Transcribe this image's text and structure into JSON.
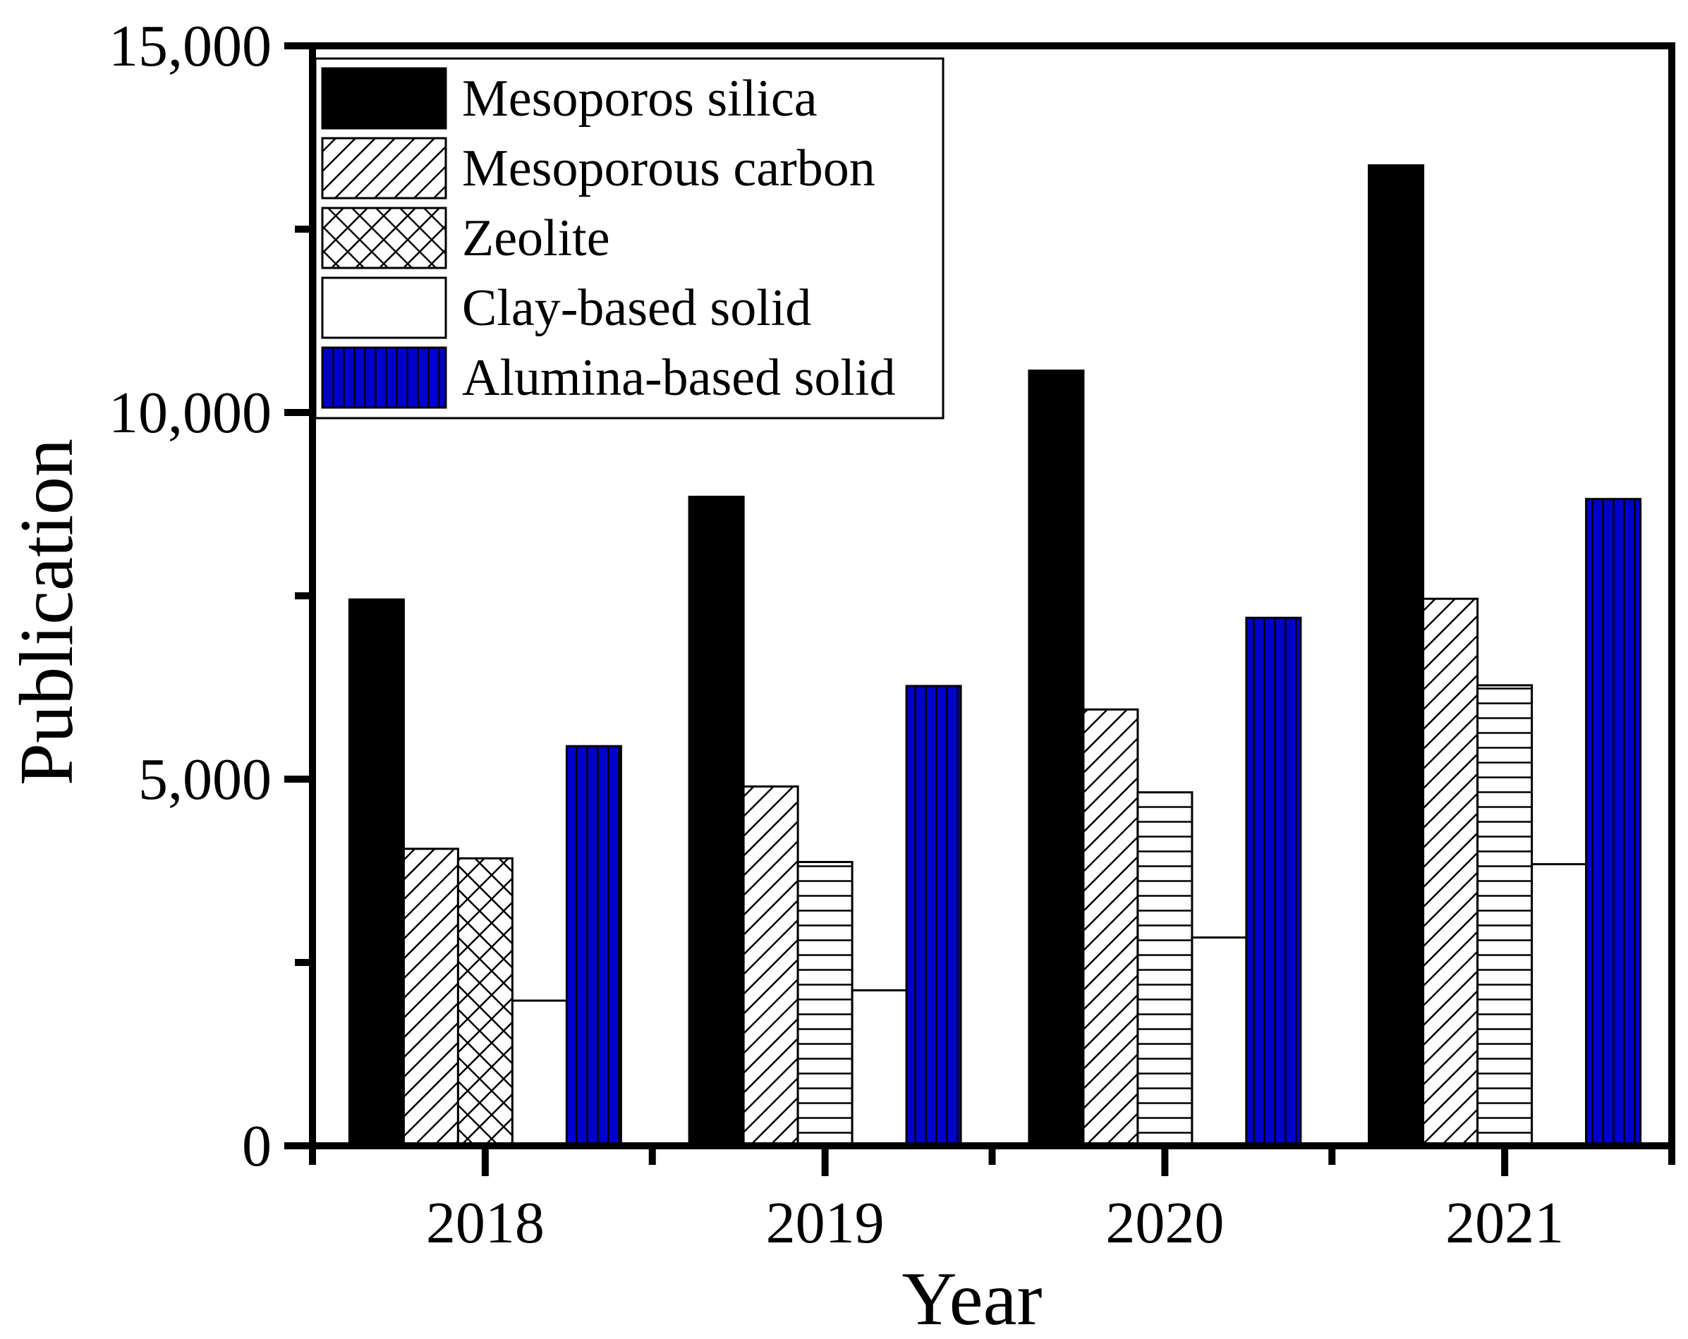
{
  "chart_data": {
    "type": "bar",
    "title": "",
    "xlabel": "Year",
    "ylabel": "Publication",
    "ylim": [
      0,
      15000
    ],
    "yticks": [
      0,
      5000,
      10000,
      15000
    ],
    "ytick_labels": [
      "0",
      "5,000",
      "10,000",
      "15,000"
    ],
    "grid": false,
    "legend_position": "top-left",
    "categories": [
      "2018",
      "2019",
      "2020",
      "2021"
    ],
    "series": [
      {
        "name": "Mesoporos silica",
        "values": [
          7450,
          8850,
          10570,
          13370
        ],
        "fill": "#000000",
        "pattern": "solid"
      },
      {
        "name": "Mesoporous carbon",
        "values": [
          4050,
          4900,
          5950,
          7460
        ],
        "fill": "#ffffff",
        "pattern": "diagonal"
      },
      {
        "name": "Zeolite",
        "values": [
          3920,
          3870,
          4820,
          6280
        ],
        "fill": "#ffffff",
        "pattern": "crosshatch"
      },
      {
        "name": "Clay-based solid",
        "values": [
          1980,
          2120,
          2840,
          3840
        ],
        "fill": "#ffffff",
        "pattern": "none"
      },
      {
        "name": "Alumina-based solid",
        "values": [
          5450,
          6270,
          7200,
          8820
        ],
        "fill": "#0000cc",
        "pattern": "vertical"
      }
    ]
  }
}
